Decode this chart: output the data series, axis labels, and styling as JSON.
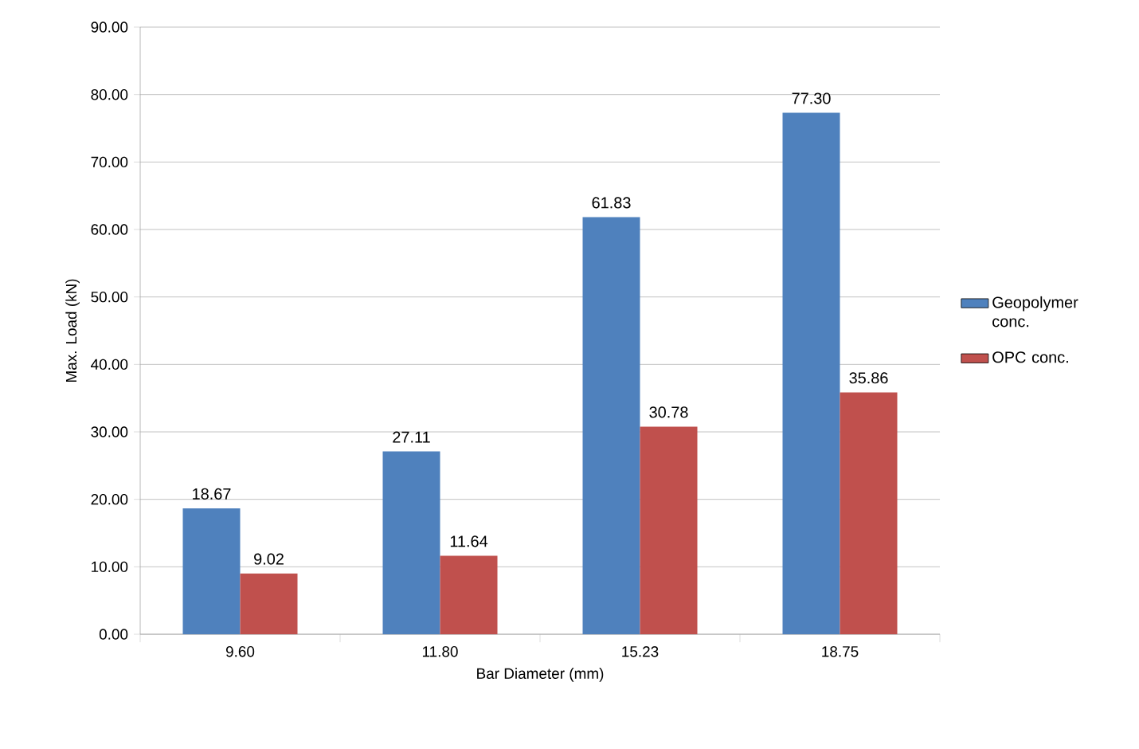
{
  "chart_data": {
    "type": "bar",
    "xlabel": "Bar Diameter (mm)",
    "ylabel": "Max. Load (kN)",
    "categories": [
      "9.60",
      "11.80",
      "15.23",
      "18.75"
    ],
    "series": [
      {
        "name": "Geopolymer conc.",
        "color": "#4f81bd",
        "values": [
          18.67,
          27.11,
          61.83,
          77.3
        ],
        "value_labels": [
          "18.67",
          "27.11",
          "61.83",
          "77.30"
        ]
      },
      {
        "name": "OPC conc.",
        "color": "#c0504d",
        "values": [
          9.02,
          11.64,
          30.78,
          35.86
        ],
        "value_labels": [
          "9.02",
          "11.64",
          "30.78",
          "35.86"
        ]
      }
    ],
    "ylim": [
      0,
      90
    ],
    "yticks": [
      {
        "value": 0,
        "label": "0.00"
      },
      {
        "value": 10,
        "label": "10.00"
      },
      {
        "value": 20,
        "label": "20.00"
      },
      {
        "value": 30,
        "label": "30.00"
      },
      {
        "value": 40,
        "label": "40.00"
      },
      {
        "value": 50,
        "label": "50.00"
      },
      {
        "value": 60,
        "label": "60.00"
      },
      {
        "value": 70,
        "label": "70.00"
      },
      {
        "value": 80,
        "label": "80.00"
      },
      {
        "value": 90,
        "label": "90.00"
      }
    ],
    "grid": "y",
    "legend": "right"
  }
}
